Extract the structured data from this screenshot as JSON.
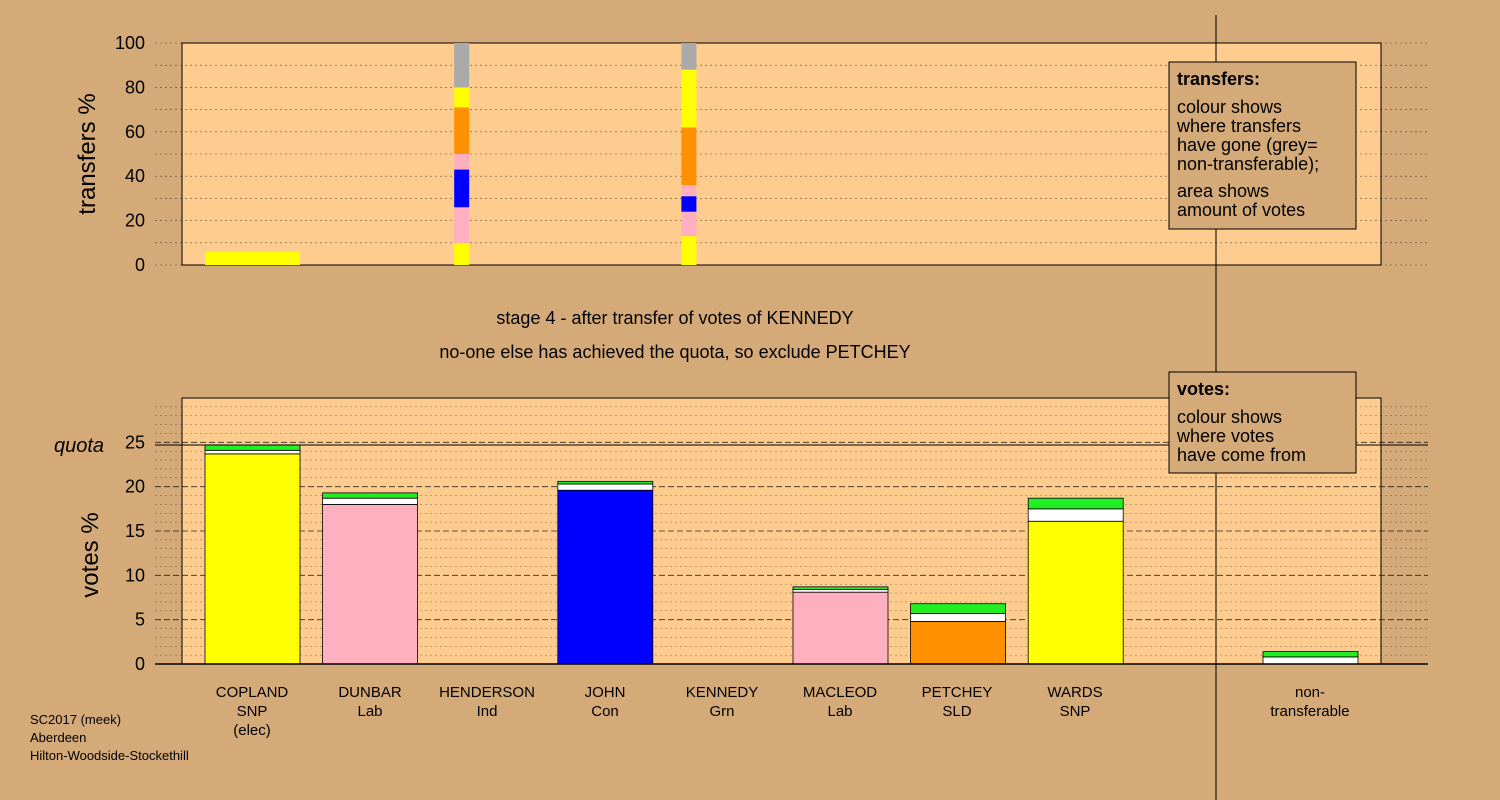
{
  "footer": [
    "SC2017 (meek)",
    "Aberdeen",
    "Hilton-Woodside-Stockethill"
  ],
  "messages": {
    "stage": "stage 4 - after transfer of votes of KENNEDY",
    "status": "no-one else has achieved the quota, so exclude PETCHEY"
  },
  "legend_transfers": {
    "title": "transfers:",
    "lines": [
      "colour shows",
      "where transfers",
      "have gone (grey=",
      "non-transferable);",
      "area shows",
      "amount of votes"
    ]
  },
  "legend_votes": {
    "title": "votes:",
    "lines": [
      "colour shows",
      "where votes",
      "have come from"
    ]
  },
  "colors": {
    "background": "#d4aa78",
    "plot_bg": "#ffcc90",
    "SNP": "#ffff00",
    "Lab": "#ffb0c0",
    "Con": "#0000ff",
    "Grn": "#22ee22",
    "SLD": "#ff9000",
    "Ind": "#ffffff",
    "nontransferable": "#aaaaaa"
  },
  "candidates": [
    {
      "name": "COPLAND",
      "party": "SNP",
      "note": "(elec)"
    },
    {
      "name": "DUNBAR",
      "party": "Lab",
      "note": ""
    },
    {
      "name": "HENDERSON",
      "party": "Ind",
      "note": ""
    },
    {
      "name": "JOHN",
      "party": "Con",
      "note": ""
    },
    {
      "name": "KENNEDY",
      "party": "Grn",
      "note": ""
    },
    {
      "name": "MACLEOD",
      "party": "Lab",
      "note": ""
    },
    {
      "name": "PETCHEY",
      "party": "SLD",
      "note": ""
    },
    {
      "name": "WARDS",
      "party": "SNP",
      "note": ""
    },
    {
      "name": "non-",
      "party": "transferable",
      "note": ""
    }
  ],
  "chart_data": [
    {
      "type": "bar",
      "ylabel": "transfers %",
      "ylim": [
        0,
        100
      ],
      "yticks": [
        0,
        20,
        40,
        60,
        80,
        100
      ],
      "bars": [
        {
          "slot": 0,
          "wide": true,
          "segments": [
            {
              "party": "SNP",
              "from": 0,
              "to": 6
            }
          ]
        },
        {
          "slot": 2,
          "wide": false,
          "segments": [
            {
              "party": "SNP",
              "from": 0,
              "to": 10
            },
            {
              "party": "Lab",
              "from": 10,
              "to": 26
            },
            {
              "party": "Con",
              "from": 26,
              "to": 43
            },
            {
              "party": "Lab",
              "from": 43,
              "to": 50
            },
            {
              "party": "SLD",
              "from": 50,
              "to": 71
            },
            {
              "party": "SNP",
              "from": 71,
              "to": 80
            },
            {
              "party": "nontransferable",
              "from": 80,
              "to": 100
            }
          ]
        },
        {
          "slot": 4,
          "wide": false,
          "segments": [
            {
              "party": "SNP",
              "from": 0,
              "to": 13
            },
            {
              "party": "Lab",
              "from": 13,
              "to": 24
            },
            {
              "party": "Con",
              "from": 24,
              "to": 31
            },
            {
              "party": "Lab",
              "from": 31,
              "to": 36
            },
            {
              "party": "SLD",
              "from": 36,
              "to": 62
            },
            {
              "party": "SNP",
              "from": 62,
              "to": 88
            },
            {
              "party": "nontransferable",
              "from": 88,
              "to": 100
            }
          ]
        }
      ]
    },
    {
      "type": "bar",
      "ylabel": "votes %",
      "ylim": [
        0,
        30
      ],
      "yticks": [
        0,
        5,
        10,
        15,
        20,
        25
      ],
      "quota": 24.7,
      "quota_label": "quota",
      "bars": [
        {
          "slot": 0,
          "segments": [
            {
              "party": "SNP",
              "from": 0,
              "to": 23.7
            },
            {
              "party": "Ind",
              "from": 23.7,
              "to": 24.1
            },
            {
              "party": "Grn",
              "from": 24.1,
              "to": 24.7
            }
          ]
        },
        {
          "slot": 1,
          "segments": [
            {
              "party": "Lab",
              "from": 0,
              "to": 18.0
            },
            {
              "party": "Ind",
              "from": 18.0,
              "to": 18.7
            },
            {
              "party": "Grn",
              "from": 18.7,
              "to": 19.3
            }
          ]
        },
        {
          "slot": 3,
          "segments": [
            {
              "party": "Con",
              "from": 0,
              "to": 19.6
            },
            {
              "party": "Ind",
              "from": 19.6,
              "to": 20.3
            },
            {
              "party": "Grn",
              "from": 20.3,
              "to": 20.6
            }
          ]
        },
        {
          "slot": 5,
          "segments": [
            {
              "party": "Lab",
              "from": 0,
              "to": 8.1
            },
            {
              "party": "Ind",
              "from": 8.1,
              "to": 8.4
            },
            {
              "party": "Grn",
              "from": 8.4,
              "to": 8.7
            }
          ]
        },
        {
          "slot": 6,
          "segments": [
            {
              "party": "SLD",
              "from": 0,
              "to": 4.8
            },
            {
              "party": "Ind",
              "from": 4.8,
              "to": 5.7
            },
            {
              "party": "Grn",
              "from": 5.7,
              "to": 6.8
            }
          ]
        },
        {
          "slot": 7,
          "segments": [
            {
              "party": "SNP",
              "from": 0,
              "to": 16.1
            },
            {
              "party": "Ind",
              "from": 16.1,
              "to": 17.5
            },
            {
              "party": "Grn",
              "from": 17.5,
              "to": 18.7
            }
          ]
        },
        {
          "slot": 8,
          "segments": [
            {
              "party": "Ind",
              "from": 0,
              "to": 0.8
            },
            {
              "party": "Grn",
              "from": 0.8,
              "to": 1.4
            }
          ]
        }
      ]
    }
  ]
}
